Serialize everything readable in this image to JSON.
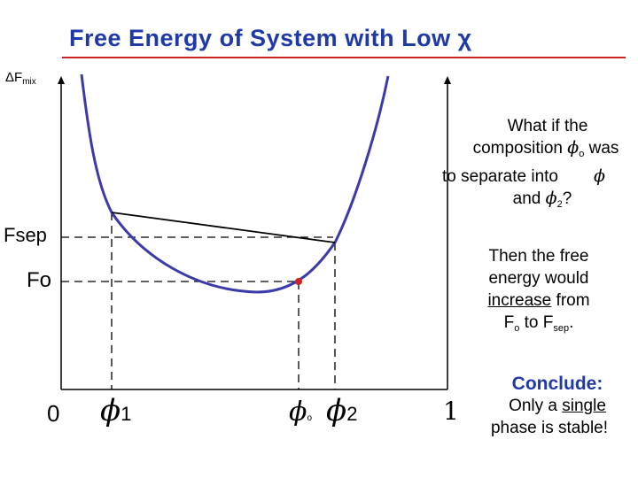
{
  "title": "Free Energy of System with Low χ",
  "y_axis_label": {
    "main": "ΔF",
    "sub": "mix"
  },
  "labels": {
    "f_sep": "Fsep",
    "f_o": {
      "main": "F",
      "sub": "o"
    },
    "x_zero": "0",
    "x_one": "1",
    "phi1": {
      "symbol": "ϕ",
      "sub": "1"
    },
    "phi_o": {
      "symbol": "ϕ",
      "sub": "o"
    },
    "phi2": {
      "symbol": "ϕ",
      "sub": "2"
    }
  },
  "question": {
    "line1": "What if the",
    "line2_pre": "composition ",
    "line2_phi": "ϕ",
    "line2_sub": "o",
    "line2_post": " was",
    "line3_pre": "to separate into",
    "line3_phi": "ϕ",
    "line4_pre": "and ",
    "line4_phi": "ϕ",
    "line4_sub": "2",
    "line4_post": "?"
  },
  "explanation": {
    "line1": "Then the free",
    "line2": "energy would",
    "line3_u": "increase",
    "line3_post": " from",
    "line4_a": "F",
    "line4_a_sub": "o",
    "line4_mid": " to F",
    "line4_b_sub": "sep",
    "line4_end": "."
  },
  "conclusion": {
    "heading": "Conclude:",
    "line2_pre": "Only a ",
    "line2_u": "single",
    "line3": "phase is stable!"
  },
  "colors": {
    "curve": "#3a3aaa",
    "title": "#1f3aa8",
    "underline": "#cc2222",
    "conclude": "#1f3aa8",
    "point": "#cc2222"
  }
}
